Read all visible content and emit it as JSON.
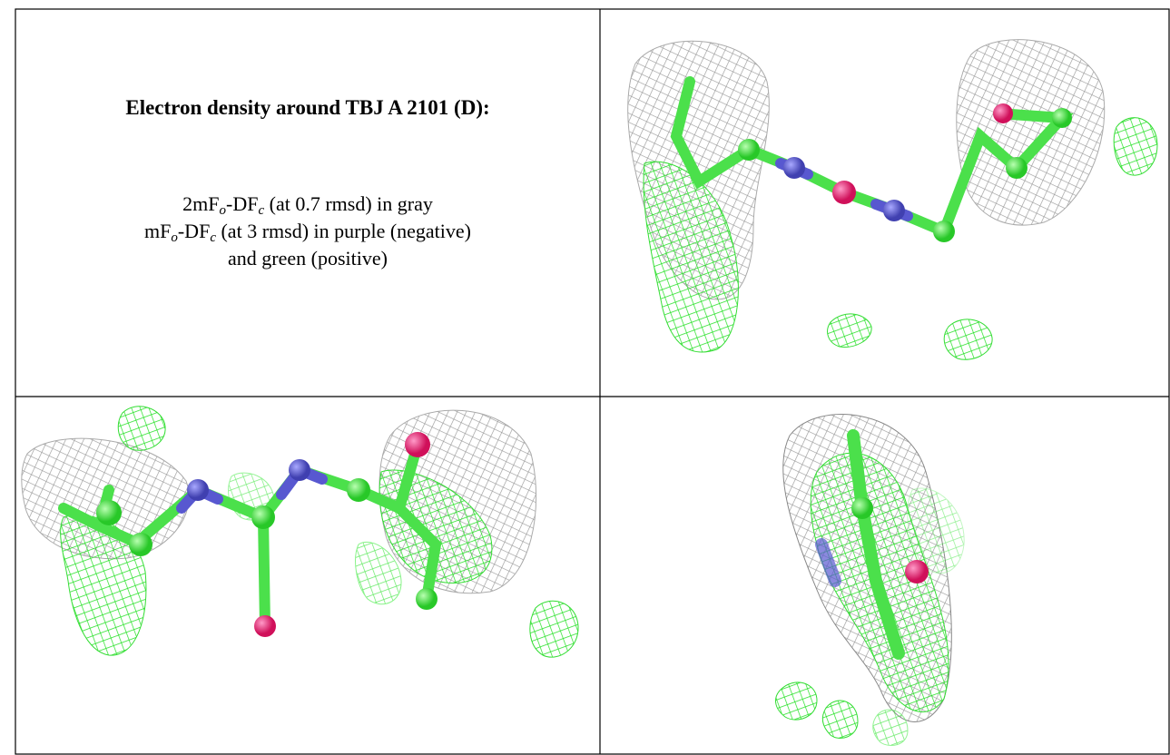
{
  "panel": {
    "title": "Electron density around TBJ A 2101 (D):",
    "lines": [
      [
        {
          "t": "2mF"
        },
        {
          "sub": "o"
        },
        {
          "t": "-DF"
        },
        {
          "sub": "c"
        },
        {
          "t": " (at 0.7 rmsd) in gray"
        }
      ],
      [
        {
          "t": "mF"
        },
        {
          "sub": "o"
        },
        {
          "t": "-DF"
        },
        {
          "sub": "c"
        },
        {
          "t": " (at 3 rmsd) in purple (negative)"
        }
      ],
      [
        {
          "t": "and green (positive)"
        }
      ]
    ]
  }
}
